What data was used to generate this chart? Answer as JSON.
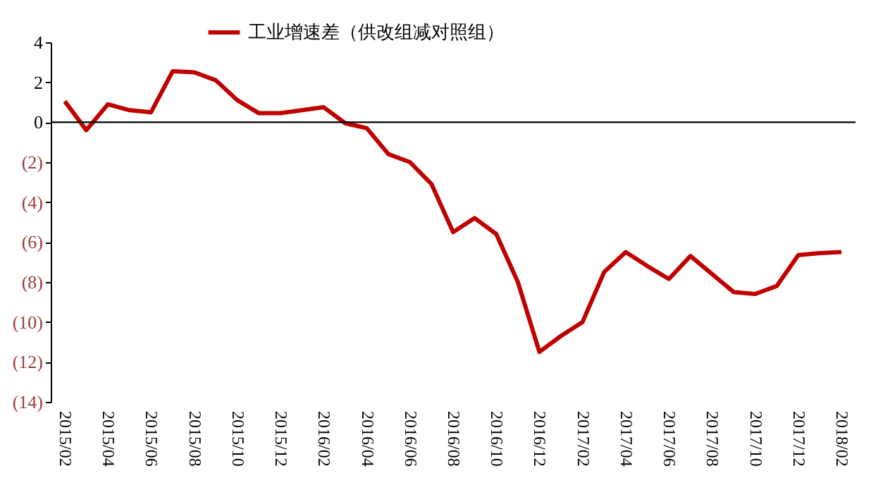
{
  "chart_data": {
    "type": "line",
    "categories": [
      "2015/02",
      null,
      "2015/04",
      null,
      "2015/06",
      null,
      "2015/08",
      null,
      "2015/10",
      null,
      "2015/12",
      null,
      "2016/02",
      null,
      "2016/04",
      null,
      "2016/06",
      null,
      "2016/08",
      null,
      "2016/10",
      null,
      "2016/12",
      null,
      "2017/02",
      null,
      "2017/04",
      null,
      "2017/06",
      null,
      "2017/08",
      null,
      "2017/10",
      null,
      "2017/12",
      null,
      "2018/02"
    ],
    "series": [
      {
        "name": "工业增速差（供改组减对照组）",
        "color": "#c00000",
        "values": [
          1.05,
          -0.4,
          0.9,
          0.6,
          0.5,
          2.55,
          2.5,
          2.1,
          1.1,
          0.45,
          0.45,
          0.6,
          0.75,
          -0.05,
          -0.3,
          -1.6,
          -2.0,
          -3.1,
          -5.5,
          -4.8,
          -5.6,
          -8.0,
          -11.5,
          -10.7,
          -10.0,
          -7.5,
          -6.5,
          -7.2,
          -7.85,
          -6.7,
          -7.6,
          -8.5,
          -8.6,
          -8.2,
          -6.65,
          -6.55,
          -6.5
        ]
      }
    ],
    "ylim": [
      -14,
      4
    ],
    "yticks": [
      4,
      2,
      0,
      {
        "value": -2,
        "label": "(2)"
      },
      {
        "value": -4,
        "label": "(4)"
      },
      {
        "value": -6,
        "label": "(6)"
      },
      {
        "value": -8,
        "label": "(8)"
      },
      {
        "value": -10,
        "label": "(10)"
      },
      {
        "value": -12,
        "label": "(12)"
      },
      {
        "value": -14,
        "label": "(14)"
      }
    ],
    "ref_lines": [
      {
        "axis": "y",
        "value": 0,
        "color": "#000000",
        "line_style": "solid"
      }
    ],
    "legend": "top",
    "grid": false,
    "marker": "none",
    "line_style": "solid"
  }
}
